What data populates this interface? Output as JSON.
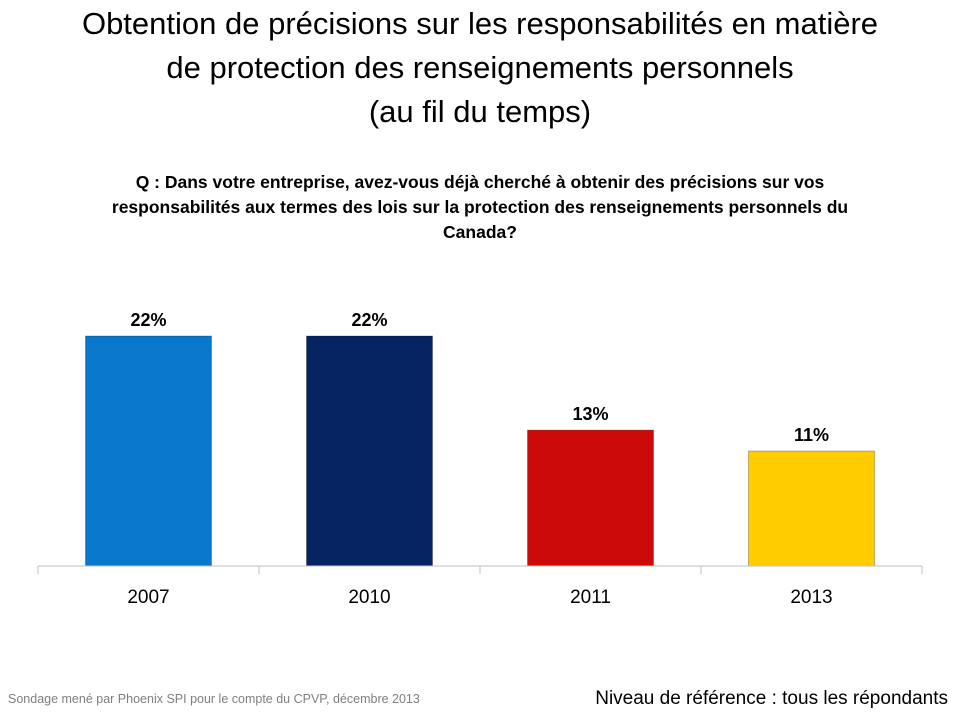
{
  "title_lines": [
    "Obtention de précisions sur les responsabilités en matière",
    "de protection des renseignements personnels",
    "(au fil du temps)"
  ],
  "question_lines": [
    "Q : Dans votre entreprise, avez-vous déjà cherché à obtenir des précisions sur vos",
    "responsabilités aux termes des lois sur la protection des renseignements personnels du",
    "Canada?"
  ],
  "footer": {
    "source": "Sondage mené par Phoenix SPI pour le compte du CPVP, décembre 2013",
    "base": "Niveau de référence : tous les répondants"
  },
  "chart_data": {
    "type": "bar",
    "categories": [
      "2007",
      "2010",
      "2011",
      "2013"
    ],
    "values": [
      22,
      22,
      13,
      11
    ],
    "data_labels": [
      "22%",
      "22%",
      "13%",
      "11%"
    ],
    "colors": [
      "#0877cc",
      "#062462",
      "#cc0a0a",
      "#ffcc00"
    ],
    "ylim": [
      0,
      25
    ],
    "grid": false,
    "legend": "none"
  }
}
